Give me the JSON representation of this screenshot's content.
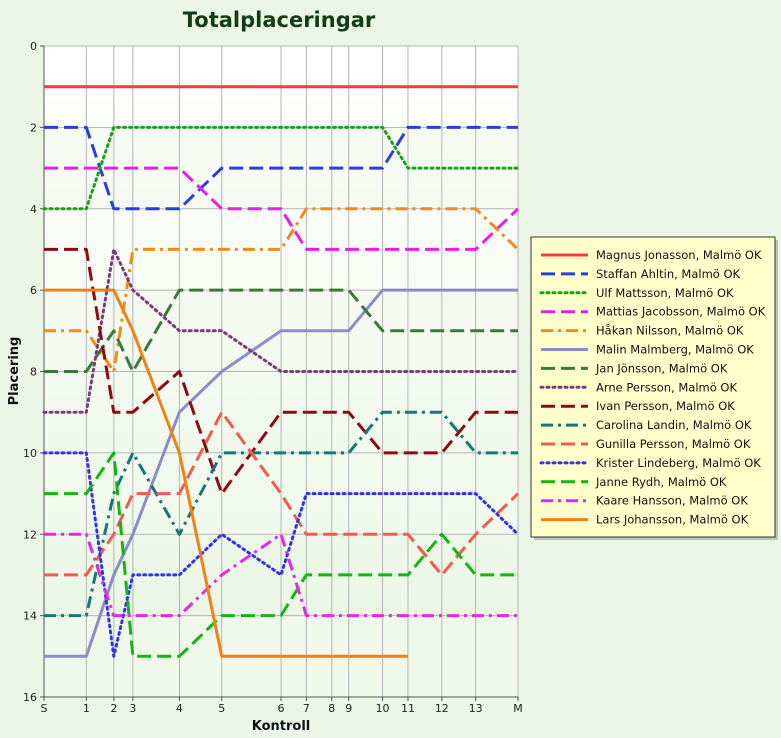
{
  "chart_data": {
    "type": "line",
    "title": "Totalplaceringar",
    "xlabel": "Kontroll",
    "ylabel": "Placering",
    "x_ticks": [
      "S",
      "1",
      "2",
      "3",
      "4",
      "5",
      "6",
      "7",
      "8",
      "9",
      "10",
      "11",
      "12",
      "13",
      "M"
    ],
    "x_tick_positions": [
      0,
      1.0,
      1.65,
      2.1,
      3.2,
      4.2,
      5.6,
      6.2,
      6.8,
      7.2,
      8.0,
      8.6,
      9.4,
      10.2,
      11.2
    ],
    "x_range": [
      0,
      11.2
    ],
    "ylim": [
      0,
      16
    ],
    "y_inverted": true,
    "y_ticks": [
      0,
      2,
      4,
      6,
      8,
      10,
      12,
      14,
      16
    ],
    "grid": true,
    "legend_position": "right",
    "series": [
      {
        "name": "Magnus Jonasson, Malmö OK",
        "color": "#f03c3c",
        "dash": "solid",
        "values": [
          1,
          1,
          1,
          1,
          1,
          1,
          1,
          1,
          1,
          1,
          1,
          1,
          1,
          1,
          1
        ]
      },
      {
        "name": "Staffan Ahltin, Malmö OK",
        "color": "#2d3cdc",
        "dash": "long",
        "values": [
          2,
          2,
          4,
          4,
          4,
          3,
          3,
          3,
          3,
          3,
          3,
          2,
          2,
          2,
          2
        ]
      },
      {
        "name": "Ulf Mattsson, Malmö OK",
        "color": "#1aa01a",
        "dash": "dot",
        "values": [
          4,
          4,
          2,
          2,
          2,
          2,
          2,
          2,
          2,
          2,
          2,
          3,
          3,
          3,
          3
        ]
      },
      {
        "name": "Mattias Jacobsson, Malmö OK",
        "color": "#e61ee6",
        "dash": "long",
        "values": [
          3,
          3,
          3,
          3,
          3,
          4,
          4,
          5,
          5,
          5,
          5,
          5,
          5,
          5,
          4
        ]
      },
      {
        "name": "Håkan Nilsson, Malmö OK",
        "color": "#f08c14",
        "dash": "dashdot",
        "values": [
          7,
          7,
          8,
          5,
          5,
          5,
          5,
          4,
          4,
          4,
          4,
          4,
          4,
          4,
          5
        ]
      },
      {
        "name": "Malin Malmberg, Malmö OK",
        "color": "#8c8cc8",
        "dash": "solid",
        "values": [
          15,
          15,
          13,
          12,
          9,
          8,
          7,
          7,
          7,
          7,
          6,
          6,
          6,
          6,
          6
        ]
      },
      {
        "name": "Jan Jönsson, Malmö OK",
        "color": "#3c783c",
        "dash": "long",
        "values": [
          8,
          8,
          7,
          8,
          6,
          6,
          6,
          6,
          6,
          6,
          7,
          7,
          7,
          7,
          7
        ]
      },
      {
        "name": "Arne Persson, Malmö OK",
        "color": "#7a3c7a",
        "dash": "dot",
        "values": [
          9,
          9,
          5,
          6,
          7,
          7,
          8,
          8,
          8,
          8,
          8,
          8,
          8,
          8,
          8
        ]
      },
      {
        "name": "Ivan Persson, Malmö OK",
        "color": "#8c0a14",
        "dash": "long",
        "values": [
          5,
          5,
          9,
          9,
          8,
          11,
          9,
          9,
          9,
          9,
          10,
          10,
          10,
          9,
          9
        ]
      },
      {
        "name": "Carolina Landin, Malmö OK",
        "color": "#147878",
        "dash": "dashdot",
        "values": [
          14,
          14,
          11,
          10,
          12,
          10,
          10,
          10,
          10,
          10,
          9,
          9,
          9,
          10,
          10
        ]
      },
      {
        "name": "Gunilla Persson, Malmö OK",
        "color": "#f05a50",
        "dash": "long",
        "values": [
          13,
          13,
          12,
          11,
          11,
          9,
          11,
          12,
          12,
          12,
          12,
          12,
          13,
          12,
          11
        ]
      },
      {
        "name": "Krister Lindeberg, Malmö OK",
        "color": "#3232e6",
        "dash": "dot",
        "values": [
          10,
          10,
          15,
          13,
          13,
          12,
          13,
          11,
          11,
          11,
          11,
          11,
          11,
          11,
          12
        ]
      },
      {
        "name": "Janne Rydh, Malmö OK",
        "color": "#14b414",
        "dash": "long",
        "values": [
          11,
          11,
          10,
          15,
          15,
          14,
          14,
          13,
          13,
          13,
          13,
          13,
          12,
          13,
          13
        ]
      },
      {
        "name": "Kaare Hansson, Malmö OK",
        "color": "#e628e6",
        "dash": "dashdot",
        "values": [
          12,
          12,
          14,
          14,
          14,
          13,
          12,
          14,
          14,
          14,
          14,
          14,
          14,
          14,
          14
        ]
      },
      {
        "name": "Lars Johansson, Malmö OK",
        "color": "#f08214",
        "dash": "solid",
        "values": [
          6,
          6,
          6,
          7,
          10,
          15,
          15,
          15,
          15,
          15,
          15,
          15,
          null,
          null,
          null
        ]
      }
    ]
  }
}
